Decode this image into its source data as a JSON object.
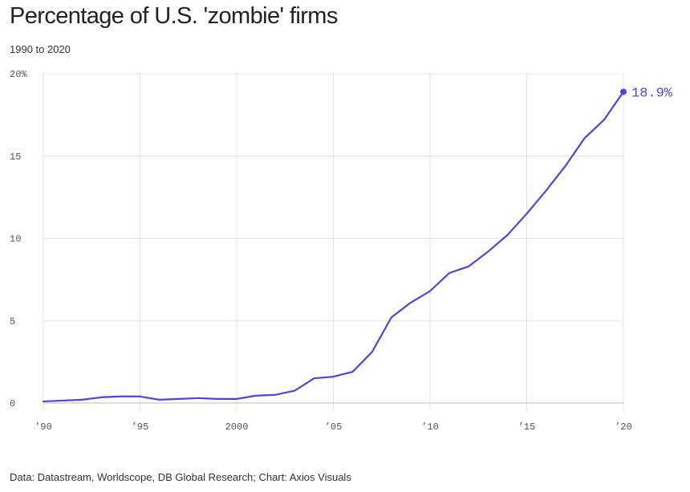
{
  "title": "Percentage of U.S. 'zombie' firms",
  "subtitle": "1990 to 2020",
  "source": "Data: Datastream, Worldscope, DB Global Research; Chart: Axios Visuals",
  "colors": {
    "line": "#5a3fd8",
    "grid": "#e2e2e2",
    "axis": "#bbbbbb",
    "tick_text": "#555555"
  },
  "chart_data": {
    "type": "line",
    "title": "Percentage of U.S. 'zombie' firms",
    "subtitle": "1990 to 2020",
    "xlabel": "",
    "ylabel": "",
    "xlim": [
      1990,
      2020
    ],
    "ylim": [
      0,
      20
    ],
    "grid": true,
    "x_ticks": [
      {
        "value": 1990,
        "label": "’90"
      },
      {
        "value": 1995,
        "label": "’95"
      },
      {
        "value": 2000,
        "label": "2000"
      },
      {
        "value": 2005,
        "label": "’05"
      },
      {
        "value": 2010,
        "label": "’10"
      },
      {
        "value": 2015,
        "label": "’15"
      },
      {
        "value": 2020,
        "label": "’20"
      }
    ],
    "y_ticks": [
      {
        "value": 0,
        "label": "0"
      },
      {
        "value": 5,
        "label": "5"
      },
      {
        "value": 10,
        "label": "10"
      },
      {
        "value": 15,
        "label": "15"
      },
      {
        "value": 20,
        "label": "20%"
      }
    ],
    "series": [
      {
        "x": [
          1990,
          1991,
          1992,
          1993,
          1994,
          1995,
          1996,
          1997,
          1998,
          1999,
          2000,
          2001,
          2002,
          2003,
          2004,
          2005,
          2006,
          2007,
          2008,
          2009,
          2010,
          2011,
          2012,
          2013,
          2014,
          2015,
          2016,
          2017,
          2018,
          2019,
          2020
        ],
        "values": [
          0.1,
          0.15,
          0.2,
          0.35,
          0.4,
          0.4,
          0.2,
          0.25,
          0.3,
          0.25,
          0.25,
          0.45,
          0.5,
          0.75,
          1.5,
          1.6,
          1.9,
          3.1,
          5.2,
          6.1,
          6.8,
          7.9,
          8.3,
          9.2,
          10.2,
          11.5,
          12.9,
          14.4,
          16.1,
          17.2,
          18.9
        ]
      }
    ],
    "end_label": "18.9%"
  }
}
